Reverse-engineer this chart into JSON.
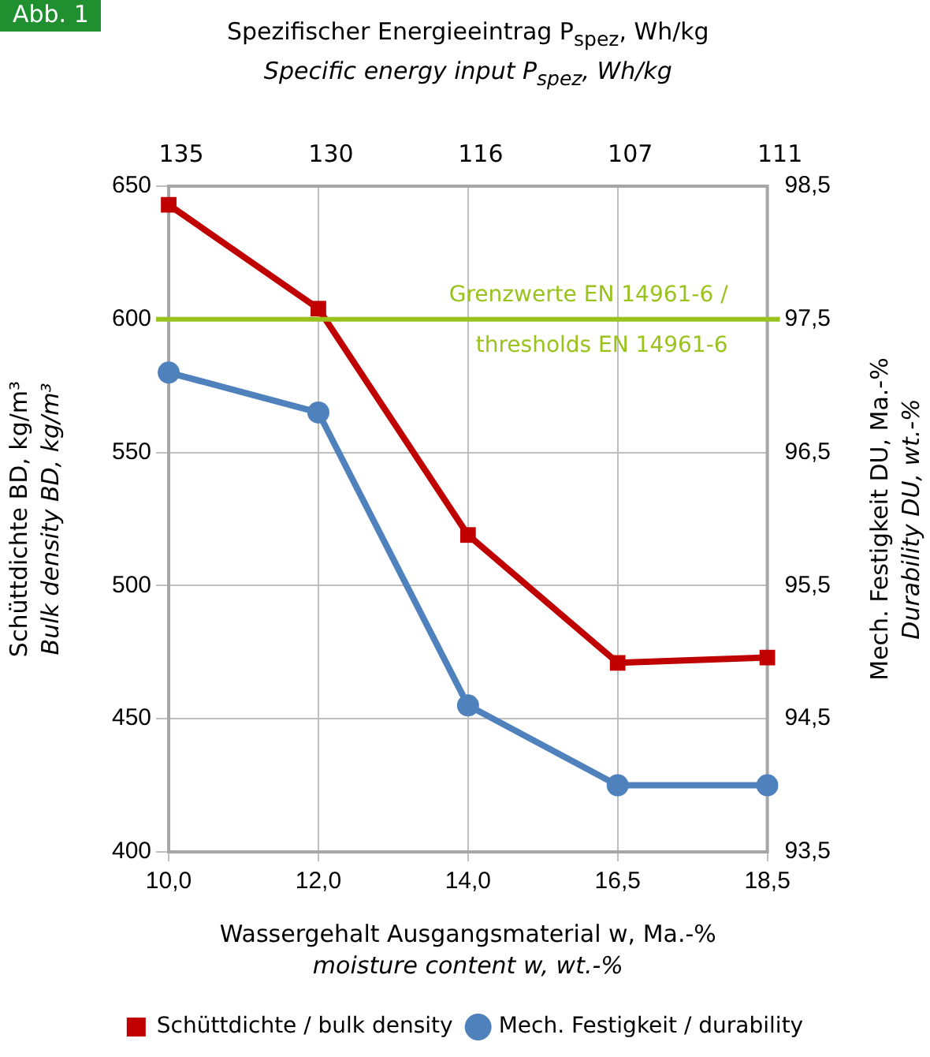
{
  "chart_data": {
    "type": "line",
    "x2label": "Spezifischer Energieeintrag P$_{spez}$, Wh/kg\nSpecific energy input P$_{spez}$, Wh/kg",
    "xlabel": "Wassergehalt Ausgangsmaterial w, Ma.-%\nmoisture content w, wt.-%",
    "ylabel": "Schüttdichte BD, kg/m³\nBulk density BD, kg/m³",
    "y2label": "Mech. Festigkeit DU, Ma.-%\nDurability DU, wt.-%",
    "categories": [
      "10,0",
      "12,0",
      "14,0",
      "16,5",
      "18,5"
    ],
    "series": [
      {
        "name": "Schüttdichte / bulk density",
        "color": "#c00000",
        "marker": "square",
        "values": [
          643,
          604,
          519,
          471,
          473
        ]
      },
      {
        "name": "Mech. Festigkeit / durability",
        "color": "#4f81bd",
        "marker": "circle",
        "axis": "y2",
        "values": [
          97.1,
          96.8,
          94.6,
          94.0,
          94.0
        ]
      }
    ],
    "ylim": [
      400,
      650
    ],
    "yticks": [
      400,
      450,
      500,
      550,
      600,
      650
    ],
    "y2lim": [
      93.5,
      98.5
    ],
    "y2ticks": [
      {
        "value": 93.5,
        "label": "93,5"
      },
      {
        "value": 94.5,
        "label": "94,5"
      },
      {
        "value": 95.5,
        "label": "95,5"
      },
      {
        "value": 96.5,
        "label": "96,5"
      },
      {
        "value": 97.5,
        "label": "97,5"
      },
      {
        "value": 98.5,
        "label": "98,5"
      }
    ],
    "ref_lines": [
      {
        "axis": "y",
        "value": 600,
        "label": "Grenzwerte EN 14961-6 /\nthresholds EN 14961-6",
        "color": "#99c31c"
      }
    ],
    "annotations": [
      "Abb. 1",
      "135",
      "130",
      "116",
      "107",
      "111"
    ],
    "grid": true,
    "legend": "bottom",
    "line_style": "solid"
  }
}
